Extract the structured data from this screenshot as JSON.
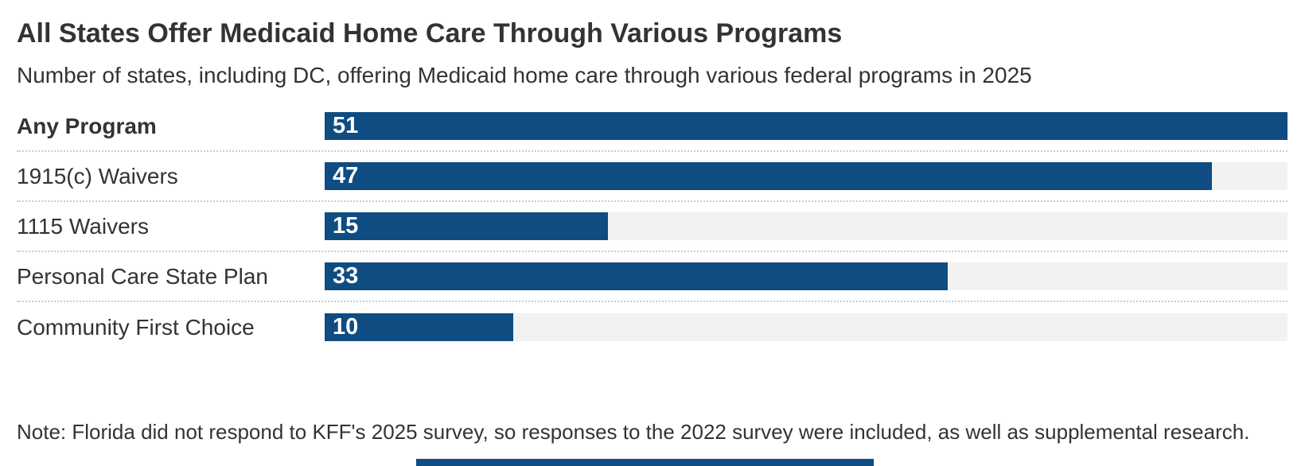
{
  "header": {
    "title": "All States Offer Medicaid Home Care Through Various Programs",
    "subtitle": "Number of states, including DC, offering Medicaid home care through various federal programs in 2025"
  },
  "chart_data": {
    "type": "bar",
    "orientation": "horizontal",
    "categories": [
      "Any Program",
      "1915(c) Waivers",
      "1115 Waivers",
      "Personal Care State Plan",
      "Community First Choice"
    ],
    "values": [
      51,
      47,
      15,
      33,
      10
    ],
    "label_bold": [
      true,
      false,
      false,
      false,
      false
    ],
    "value_labels_inside_bar": true,
    "xlim": [
      0,
      51
    ],
    "grid": false,
    "legend": "none",
    "bar_color": "#0f4c81",
    "track_color": "#f2f2f2",
    "value_label_color": "#ffffff",
    "separator_color": "#cccccc",
    "title": "All States Offer Medicaid Home Care Through Various Programs",
    "subtitle": "Number of states, including DC, offering Medicaid home care through various federal programs in 2025"
  },
  "note": "Note: Florida did not respond to KFF's 2025 survey, so responses to the 2022 survey were included, as well as supplemental research.",
  "footer": {
    "accent_bar_color": "#0f4c81"
  }
}
